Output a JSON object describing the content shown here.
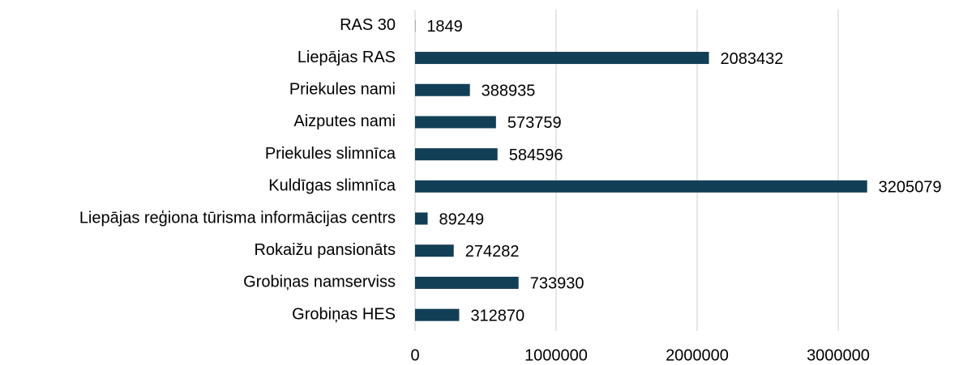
{
  "chart_data": {
    "type": "barh",
    "categories": [
      "RAS 30",
      "Liepājas RAS",
      "Priekules nami",
      "Aizputes nami",
      "Priekules slimnīca",
      "Kuldīgas slimnīca",
      "Liepājas reģiona tūrisma informācijas centrs",
      "Rokaižu pansionāts",
      "Grobiņas namserviss",
      "Grobiņas HES"
    ],
    "values": [
      1849,
      2083432,
      388935,
      573759,
      584596,
      3205079,
      89249,
      274282,
      733930,
      312870
    ],
    "color": "#123f56",
    "xlim": [
      0,
      3500000
    ],
    "xticks": [
      0,
      1000000,
      2000000,
      3000000
    ],
    "grid": true
  }
}
